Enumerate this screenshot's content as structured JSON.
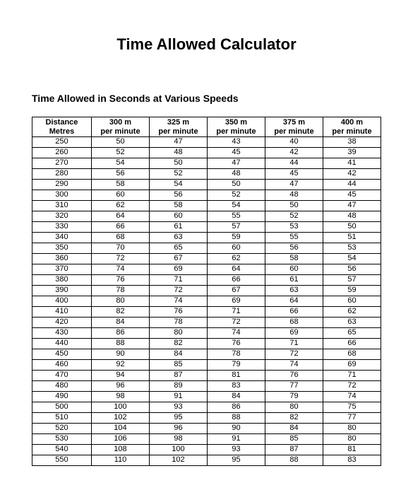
{
  "title": "Time Allowed Calculator",
  "subtitle": "Time Allowed in Seconds at Various Speeds",
  "table": {
    "columns": [
      "Distance Metres",
      "300 m per minute",
      "325 m per minute",
      "350 m per minute",
      "375 m per minute",
      "400 m per minute"
    ],
    "rows": [
      [
        250,
        50,
        47,
        43,
        40,
        38
      ],
      [
        260,
        52,
        48,
        45,
        42,
        39
      ],
      [
        270,
        54,
        50,
        47,
        44,
        41
      ],
      [
        280,
        56,
        52,
        48,
        45,
        42
      ],
      [
        290,
        58,
        54,
        50,
        47,
        44
      ],
      [
        300,
        60,
        56,
        52,
        48,
        45
      ],
      [
        310,
        62,
        58,
        54,
        50,
        47
      ],
      [
        320,
        64,
        60,
        55,
        52,
        48
      ],
      [
        330,
        66,
        61,
        57,
        53,
        50
      ],
      [
        340,
        68,
        63,
        59,
        55,
        51
      ],
      [
        350,
        70,
        65,
        60,
        56,
        53
      ],
      [
        360,
        72,
        67,
        62,
        58,
        54
      ],
      [
        370,
        74,
        69,
        64,
        60,
        56
      ],
      [
        380,
        76,
        71,
        66,
        61,
        57
      ],
      [
        390,
        78,
        72,
        67,
        63,
        59
      ],
      [
        400,
        80,
        74,
        69,
        64,
        60
      ],
      [
        410,
        82,
        76,
        71,
        66,
        62
      ],
      [
        420,
        84,
        78,
        72,
        68,
        63
      ],
      [
        430,
        86,
        80,
        74,
        69,
        65
      ],
      [
        440,
        88,
        82,
        76,
        71,
        66
      ],
      [
        450,
        90,
        84,
        78,
        72,
        68
      ],
      [
        460,
        92,
        85,
        79,
        74,
        69
      ],
      [
        470,
        94,
        87,
        81,
        76,
        71
      ],
      [
        480,
        96,
        89,
        83,
        77,
        72
      ],
      [
        490,
        98,
        91,
        84,
        79,
        74
      ],
      [
        500,
        100,
        93,
        86,
        80,
        75
      ],
      [
        510,
        102,
        95,
        88,
        82,
        77
      ],
      [
        520,
        104,
        96,
        90,
        84,
        80
      ],
      [
        530,
        106,
        98,
        91,
        85,
        80
      ],
      [
        540,
        108,
        100,
        93,
        87,
        81
      ],
      [
        550,
        110,
        102,
        95,
        88,
        83
      ]
    ],
    "header_lines": [
      [
        "Distance",
        "Metres"
      ],
      [
        "300 m",
        "per minute"
      ],
      [
        "325 m",
        "per minute"
      ],
      [
        "350 m",
        "per minute"
      ],
      [
        "375 m",
        "per minute"
      ],
      [
        "400 m",
        "per minute"
      ]
    ],
    "border_color": "#000000",
    "background_color": "#ffffff",
    "text_color": "#000000",
    "header_fontsize": 11,
    "cell_fontsize": 11
  }
}
